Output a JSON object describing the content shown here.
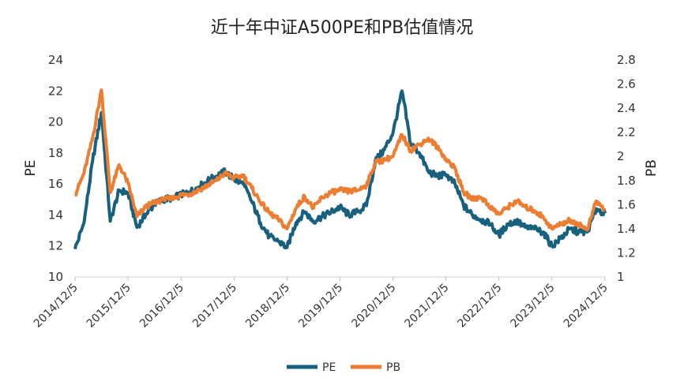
{
  "chart_data": {
    "type": "line",
    "title": "近十年中证A500PE和PB估值情况",
    "ylabel_left": "PE",
    "ylabel_right": "PB",
    "ylim_left": [
      10,
      24
    ],
    "ylim_right": [
      1,
      2.8
    ],
    "yticks_left": [
      "10",
      "12",
      "14",
      "16",
      "18",
      "20",
      "22",
      "24"
    ],
    "yticks_right": [
      "1",
      "1.2",
      "1.4",
      "1.6",
      "1.8",
      "2",
      "2.2",
      "2.4",
      "2.6",
      "2.8"
    ],
    "x_tick_labels": [
      "2014/12/5",
      "2015/12/5",
      "2016/12/5",
      "2017/12/5",
      "2018/12/5",
      "2019/12/5",
      "2020/12/5",
      "2021/12/5",
      "2022/12/5",
      "2023/12/5",
      "2024/12/5"
    ],
    "x": [
      "2014/12/5",
      "2015/2/5",
      "2015/4/5",
      "2015/6/5",
      "2015/8/5",
      "2015/10/5",
      "2015/12/5",
      "2016/2/5",
      "2016/4/5",
      "2016/6/5",
      "2016/8/5",
      "2016/10/5",
      "2016/12/5",
      "2017/2/5",
      "2017/4/5",
      "2017/6/5",
      "2017/8/5",
      "2017/10/5",
      "2017/12/5",
      "2018/2/5",
      "2018/4/5",
      "2018/6/5",
      "2018/8/5",
      "2018/10/5",
      "2018/12/5",
      "2019/2/5",
      "2019/4/5",
      "2019/6/5",
      "2019/8/5",
      "2019/10/5",
      "2019/12/5",
      "2020/2/5",
      "2020/4/5",
      "2020/6/5",
      "2020/8/5",
      "2020/10/5",
      "2020/12/5",
      "2021/2/5",
      "2021/4/5",
      "2021/6/5",
      "2021/8/5",
      "2021/10/5",
      "2021/12/5",
      "2022/2/5",
      "2022/4/5",
      "2022/6/5",
      "2022/8/5",
      "2022/10/5",
      "2022/12/5",
      "2023/2/5",
      "2023/4/5",
      "2023/6/5",
      "2023/8/5",
      "2023/10/5",
      "2023/12/5",
      "2024/2/5",
      "2024/4/5",
      "2024/6/5",
      "2024/8/5",
      "2024/10/5",
      "2024/12/5"
    ],
    "series": [
      {
        "name": "PE",
        "axis": "left",
        "color": "#17607e",
        "values": [
          11.8,
          13.5,
          17.5,
          20.6,
          13.6,
          15.6,
          15.4,
          13.2,
          14.0,
          14.7,
          15.0,
          15.1,
          15.3,
          15.5,
          15.8,
          16.2,
          16.5,
          16.8,
          16.3,
          16.0,
          14.9,
          13.5,
          12.6,
          12.3,
          11.9,
          13.5,
          14.2,
          13.6,
          13.9,
          14.2,
          14.5,
          14.0,
          14.2,
          14.6,
          17.5,
          18.2,
          19.3,
          22.0,
          18.6,
          18.0,
          16.8,
          16.5,
          16.6,
          16.0,
          14.6,
          14.0,
          13.7,
          13.4,
          12.7,
          13.4,
          13.6,
          13.2,
          13.1,
          12.9,
          12.0,
          12.5,
          13.1,
          12.9,
          12.9,
          14.4,
          14.1
        ]
      },
      {
        "name": "PB",
        "axis": "right",
        "color": "#ed7d31",
        "values": [
          1.68,
          1.86,
          2.15,
          2.55,
          1.7,
          1.93,
          1.78,
          1.5,
          1.58,
          1.62,
          1.64,
          1.65,
          1.68,
          1.69,
          1.72,
          1.76,
          1.8,
          1.86,
          1.82,
          1.84,
          1.74,
          1.62,
          1.53,
          1.48,
          1.4,
          1.57,
          1.67,
          1.57,
          1.66,
          1.7,
          1.72,
          1.71,
          1.72,
          1.76,
          1.95,
          1.97,
          2.0,
          2.18,
          2.05,
          2.1,
          2.15,
          2.08,
          1.98,
          1.9,
          1.7,
          1.65,
          1.66,
          1.58,
          1.52,
          1.58,
          1.63,
          1.58,
          1.55,
          1.5,
          1.4,
          1.44,
          1.47,
          1.44,
          1.39,
          1.63,
          1.55
        ]
      }
    ],
    "legend": {
      "position": "bottom",
      "entries": [
        "PE",
        "PB"
      ]
    },
    "grid": false
  }
}
